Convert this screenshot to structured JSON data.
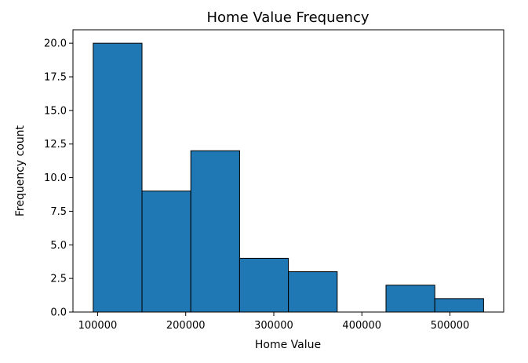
{
  "chart_data": {
    "type": "bar",
    "subtype": "histogram",
    "title": "Home Value Frequency",
    "xlabel": "Home Value",
    "ylabel": "Frequency count",
    "bins": [
      {
        "start": 95000,
        "end": 150400,
        "count": 20
      },
      {
        "start": 150400,
        "end": 205800,
        "count": 9
      },
      {
        "start": 205800,
        "end": 261200,
        "count": 12
      },
      {
        "start": 261200,
        "end": 316600,
        "count": 4
      },
      {
        "start": 316600,
        "end": 372000,
        "count": 3
      },
      {
        "start": 372000,
        "end": 427400,
        "count": 0
      },
      {
        "start": 427400,
        "end": 482800,
        "count": 2
      },
      {
        "start": 482800,
        "end": 538200,
        "count": 1
      }
    ],
    "xlim": [
      72000,
      561000
    ],
    "ylim": [
      0,
      21
    ],
    "xticks": [
      100000,
      200000,
      300000,
      400000,
      500000
    ],
    "yticks": [
      0.0,
      2.5,
      5.0,
      7.5,
      10.0,
      12.5,
      15.0,
      17.5,
      20.0
    ],
    "xtick_labels": [
      "100000",
      "200000",
      "300000",
      "400000",
      "500000"
    ],
    "ytick_labels": [
      "0.0",
      "2.5",
      "5.0",
      "7.5",
      "10.0",
      "12.5",
      "15.0",
      "17.5",
      "20.0"
    ],
    "bar_color": "#1f77b4",
    "edge_color": "#000000",
    "grid": false
  }
}
